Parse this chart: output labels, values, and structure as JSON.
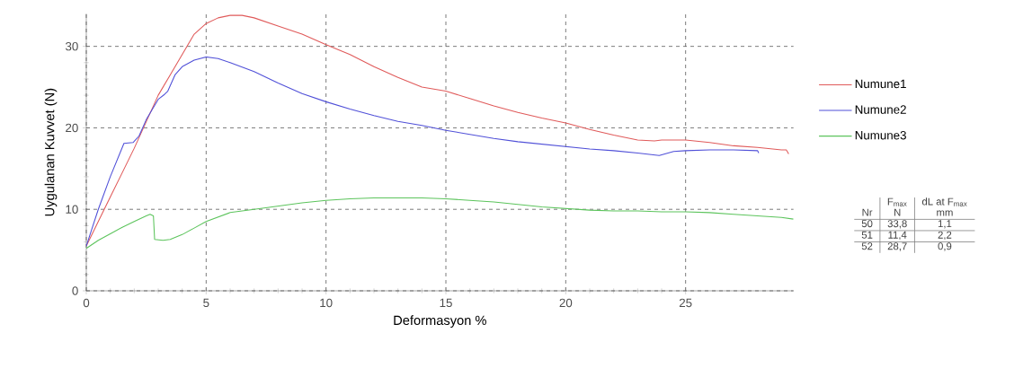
{
  "chart_data": {
    "type": "line",
    "xlabel": "Deformasyon %",
    "ylabel": "Uygulanan Kuvvet (N)",
    "xlim": [
      0,
      29.5
    ],
    "ylim": [
      0,
      34
    ],
    "xticks": [
      0,
      5,
      10,
      15,
      20,
      25
    ],
    "yticks": [
      0,
      10,
      20,
      30
    ],
    "grid": true,
    "legend": "right",
    "marker": "none",
    "line_style": "solid",
    "series": [
      {
        "name": "Numune1",
        "color": "#e05a5a",
        "x": [
          0,
          0.5,
          1,
          1.5,
          2,
          3,
          3.5,
          4,
          4.5,
          5,
          5.5,
          6,
          6.5,
          7,
          8,
          9,
          10,
          11,
          12,
          13,
          14,
          15,
          16,
          17,
          18,
          19,
          20,
          21,
          22,
          23,
          23.7,
          24,
          25,
          26,
          27,
          28,
          29,
          29.2,
          29.3
        ],
        "values": [
          5.5,
          8.5,
          11.5,
          14.5,
          17.5,
          24,
          26.5,
          29,
          31.5,
          32.8,
          33.5,
          33.8,
          33.8,
          33.5,
          32.5,
          31.5,
          30.2,
          29,
          27.5,
          26.2,
          25,
          24.5,
          23.6,
          22.7,
          21.9,
          21.2,
          20.6,
          19.8,
          19.1,
          18.5,
          18.4,
          18.5,
          18.5,
          18.2,
          17.8,
          17.6,
          17.3,
          17.3,
          16.8
        ]
      },
      {
        "name": "Numune2",
        "color": "#5050d8",
        "x": [
          0,
          0.5,
          1,
          1.57,
          1.95,
          2.2,
          2.5,
          3,
          3.26,
          3.4,
          3.7,
          4,
          4.5,
          5,
          5.5,
          6,
          7,
          8,
          9,
          10,
          11,
          12,
          13,
          14,
          15,
          16,
          17,
          18,
          19,
          20,
          21,
          22,
          23,
          23.9,
          24.5,
          25,
          26,
          27,
          28,
          28.05
        ],
        "values": [
          5.5,
          10,
          14,
          18.1,
          18.2,
          19,
          21,
          23.5,
          24.1,
          24.5,
          26.5,
          27.5,
          28.3,
          28.7,
          28.5,
          28,
          26.9,
          25.5,
          24.2,
          23.2,
          22.3,
          21.5,
          20.8,
          20.3,
          19.7,
          19.2,
          18.7,
          18.3,
          18,
          17.7,
          17.4,
          17.2,
          16.9,
          16.6,
          17.1,
          17.2,
          17.3,
          17.3,
          17.2,
          16.9
        ]
      },
      {
        "name": "Numune3",
        "color": "#5cc45c",
        "x": [
          0,
          0.5,
          1,
          1.5,
          2,
          2.5,
          2.66,
          2.8,
          2.85,
          3.2,
          3.5,
          4,
          4.5,
          5,
          6,
          7,
          8,
          9,
          10,
          11,
          12,
          13,
          14,
          15,
          16,
          17,
          18,
          19,
          20,
          21,
          22,
          23,
          24,
          25,
          26,
          27,
          28,
          29,
          29.5
        ],
        "values": [
          5.2,
          6.2,
          7,
          7.8,
          8.5,
          9.2,
          9.4,
          9.2,
          6.3,
          6.2,
          6.3,
          6.9,
          7.7,
          8.5,
          9.6,
          10,
          10.4,
          10.8,
          11.1,
          11.3,
          11.4,
          11.4,
          11.4,
          11.3,
          11.1,
          10.9,
          10.6,
          10.3,
          10.1,
          9.9,
          9.8,
          9.8,
          9.7,
          9.7,
          9.6,
          9.4,
          9.2,
          9,
          8.8
        ]
      }
    ],
    "annotations": [
      "Nr",
      "F$_{max}$",
      "N",
      "dL at F$_{max}$",
      "mm",
      "50",
      "33,8",
      "1,1",
      "51",
      "11,4",
      "2,2",
      "52",
      "28,7",
      "0,9"
    ]
  }
}
